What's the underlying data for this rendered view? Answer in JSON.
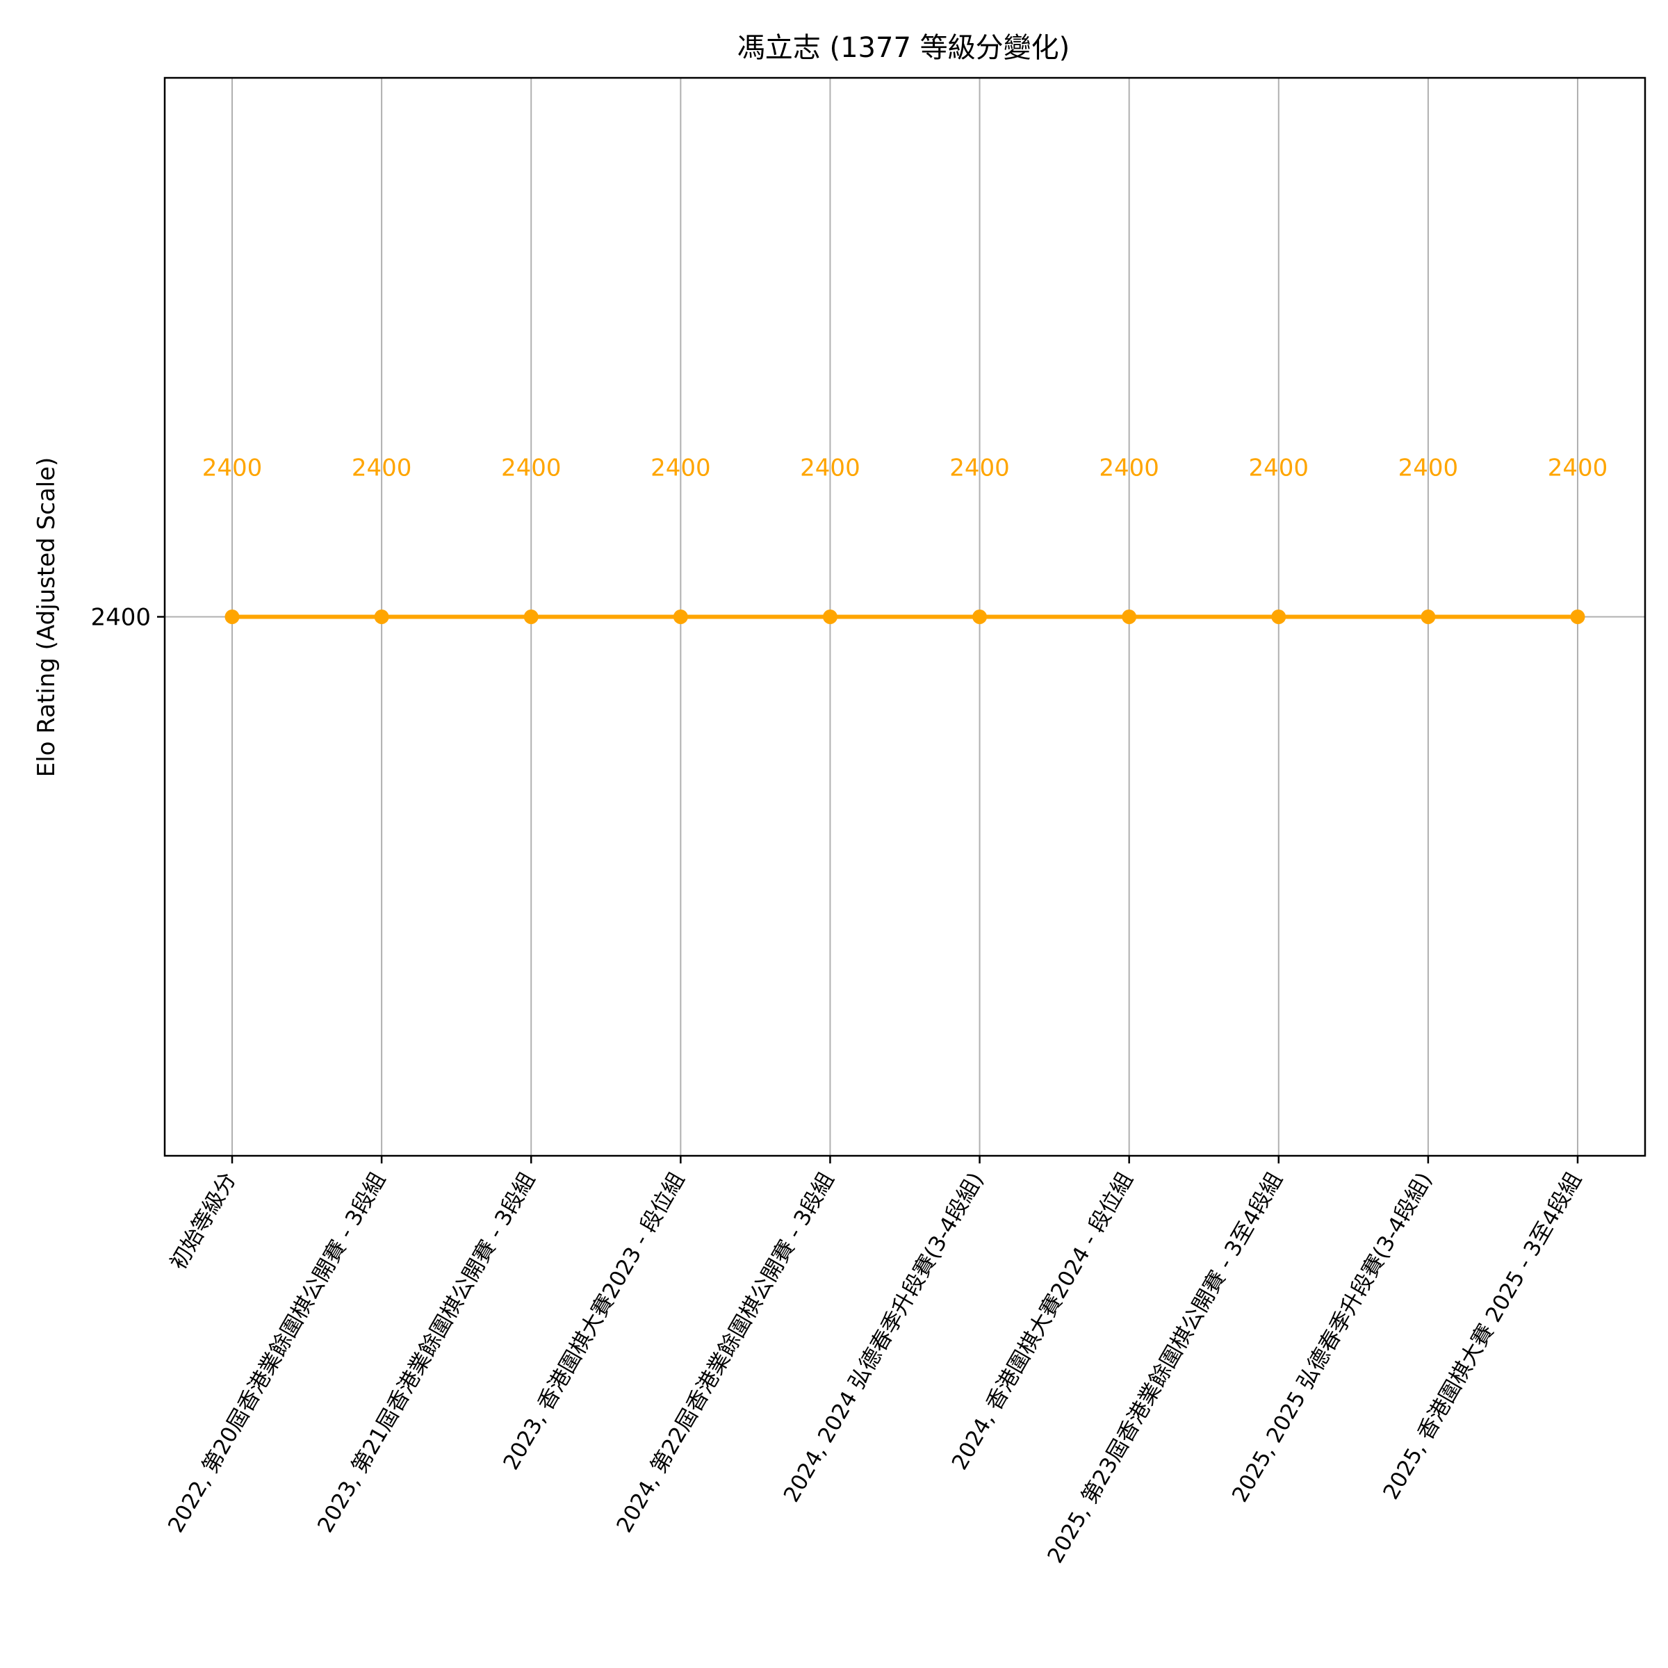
{
  "chart_data": {
    "type": "line",
    "title": "馮立志 (1377 等級分變化)",
    "xlabel": "",
    "ylabel": "Elo Rating (Adjusted Scale)",
    "categories": [
      "初始等級分",
      "2022, 第20屆香港業餘圍棋公開賽 - 3段組",
      "2023, 第21屆香港業餘圍棋公開賽 - 3段組",
      "2023, 香港圍棋大賽2023 - 段位組",
      "2024, 第22屆香港業餘圍棋公開賽 - 3段組",
      "2024, 2024 弘德春季升段賽(3-4段組)",
      "2024, 香港圍棋大賽2024 - 段位組",
      "2025, 第23屆香港業餘圍棋公開賽 - 3至4段組",
      "2025, 2025 弘德春季升段賽(3-4段組)",
      "2025, 香港圍棋大賽 2025 - 3至4段組"
    ],
    "series": [
      {
        "values": [
          2400,
          2400,
          2400,
          2400,
          2400,
          2400,
          2400,
          2400,
          2400,
          2400
        ],
        "color": "#ffa500"
      }
    ],
    "data_labels": [
      "2400",
      "2400",
      "2400",
      "2400",
      "2400",
      "2400",
      "2400",
      "2400",
      "2400",
      "2400"
    ],
    "yticks": [
      2400
    ],
    "ytick_labels": [
      "2400"
    ],
    "ylim": [
      2399.5,
      2400.5
    ],
    "grid": true,
    "legend": "none"
  }
}
